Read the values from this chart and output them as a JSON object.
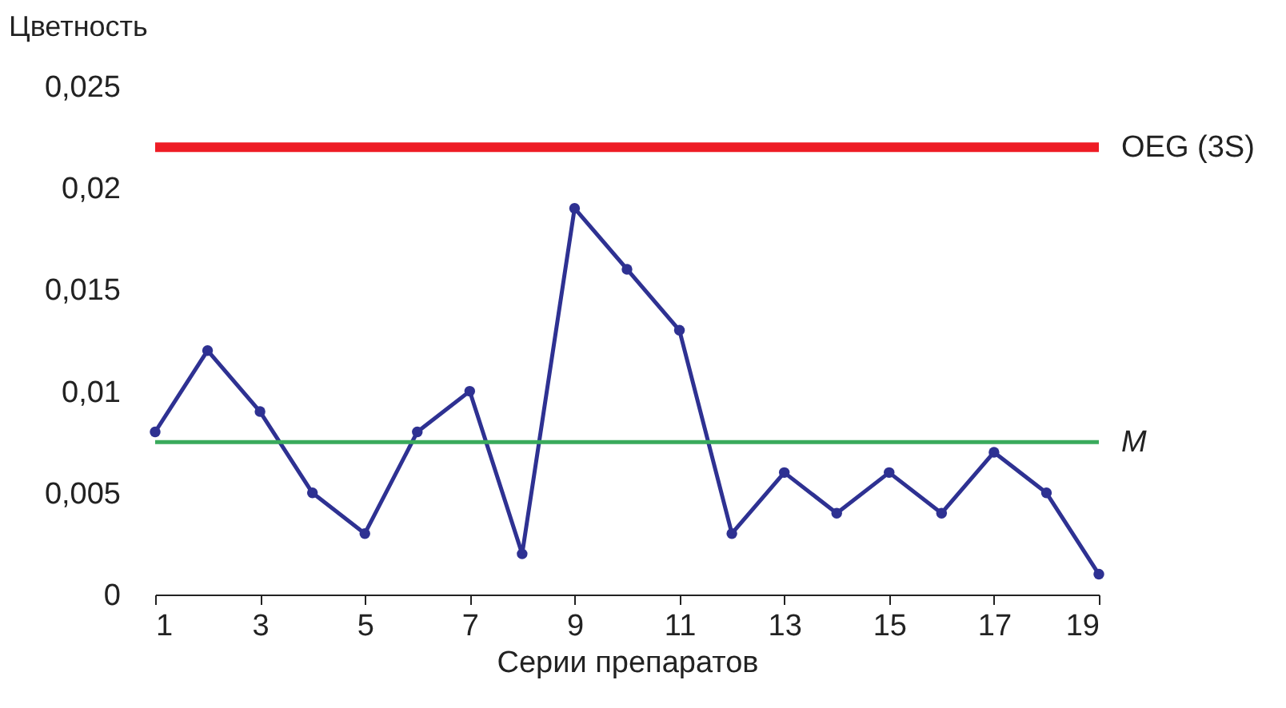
{
  "chart_data": {
    "type": "line",
    "ylabel": "Цветность",
    "xlabel": "Серии препаратов",
    "x": [
      1,
      2,
      3,
      4,
      5,
      6,
      7,
      8,
      9,
      10,
      11,
      12,
      13,
      14,
      15,
      16,
      17,
      18,
      19
    ],
    "series": [
      {
        "color": "#2e3192",
        "values": [
          0.008,
          0.012,
          0.009,
          0.005,
          0.003,
          0.008,
          0.01,
          0.002,
          0.019,
          0.016,
          0.013,
          0.003,
          0.006,
          0.004,
          0.006,
          0.004,
          0.007,
          0.005,
          0.001
        ]
      }
    ],
    "marker": "circle",
    "line_style": "solid",
    "grid": false,
    "xlim": [
      1,
      19
    ],
    "xticks": [
      1,
      3,
      5,
      7,
      9,
      11,
      13,
      15,
      17,
      19
    ],
    "ylim": [
      0,
      0.025
    ],
    "yticks": [
      0,
      {
        "value": 0.005,
        "label": "0,005"
      },
      {
        "value": 0.01,
        "label": "0,01"
      },
      {
        "value": 0.015,
        "label": "0,015"
      },
      {
        "value": 0.02,
        "label": "0,02"
      },
      {
        "value": 0.025,
        "label": "0,025"
      }
    ],
    "ref_lines": [
      {
        "axis": "y",
        "value": 0.022,
        "label": "OEG (3S)",
        "color": "#ee1c25"
      },
      {
        "axis": "y",
        "value": 0.0075,
        "label": "M",
        "color": "#3aaa5c"
      }
    ]
  }
}
